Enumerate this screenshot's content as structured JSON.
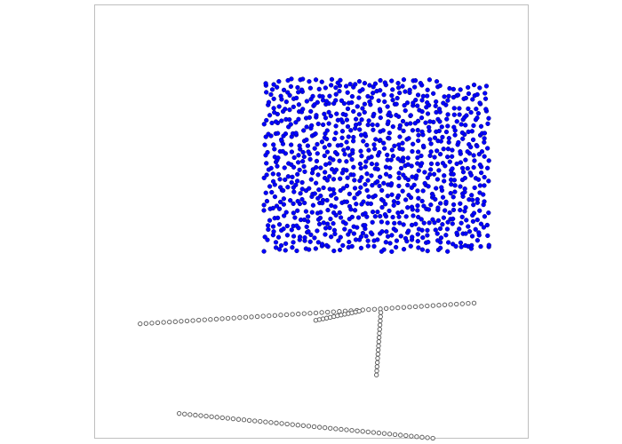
{
  "chart_data": {
    "type": "scatter",
    "title": "",
    "xlabel": "",
    "ylabel": "",
    "grid": false,
    "axes_ticks": false,
    "colors": {
      "filled": "#0000ff",
      "hollow_edge": "#555555",
      "frame": "#bfbfbf"
    },
    "xlim": [
      0,
      100
    ],
    "ylim": [
      0,
      100
    ],
    "series": [
      {
        "style": "filled",
        "kind": "uniform_cloud",
        "count": 1000,
        "x_range": [
          39,
          91
        ],
        "y_range": [
          43,
          83
        ],
        "seed": 7
      },
      {
        "style": "hollow",
        "kind": "lines",
        "segments": [
          {
            "from": [
              10.5,
              26.4
            ],
            "to": [
              87.5,
              31.2
            ],
            "n": 58
          },
          {
            "from": [
              51.0,
              27.2
            ],
            "to": [
              61.0,
              29.3
            ],
            "n": 13
          },
          {
            "from": [
              66.0,
              29.0
            ],
            "to": [
              65.0,
              14.6
            ],
            "n": 16
          },
          {
            "from": [
              19.5,
              5.7
            ],
            "to": [
              78.0,
              0.0
            ],
            "n": 48
          }
        ]
      }
    ]
  }
}
